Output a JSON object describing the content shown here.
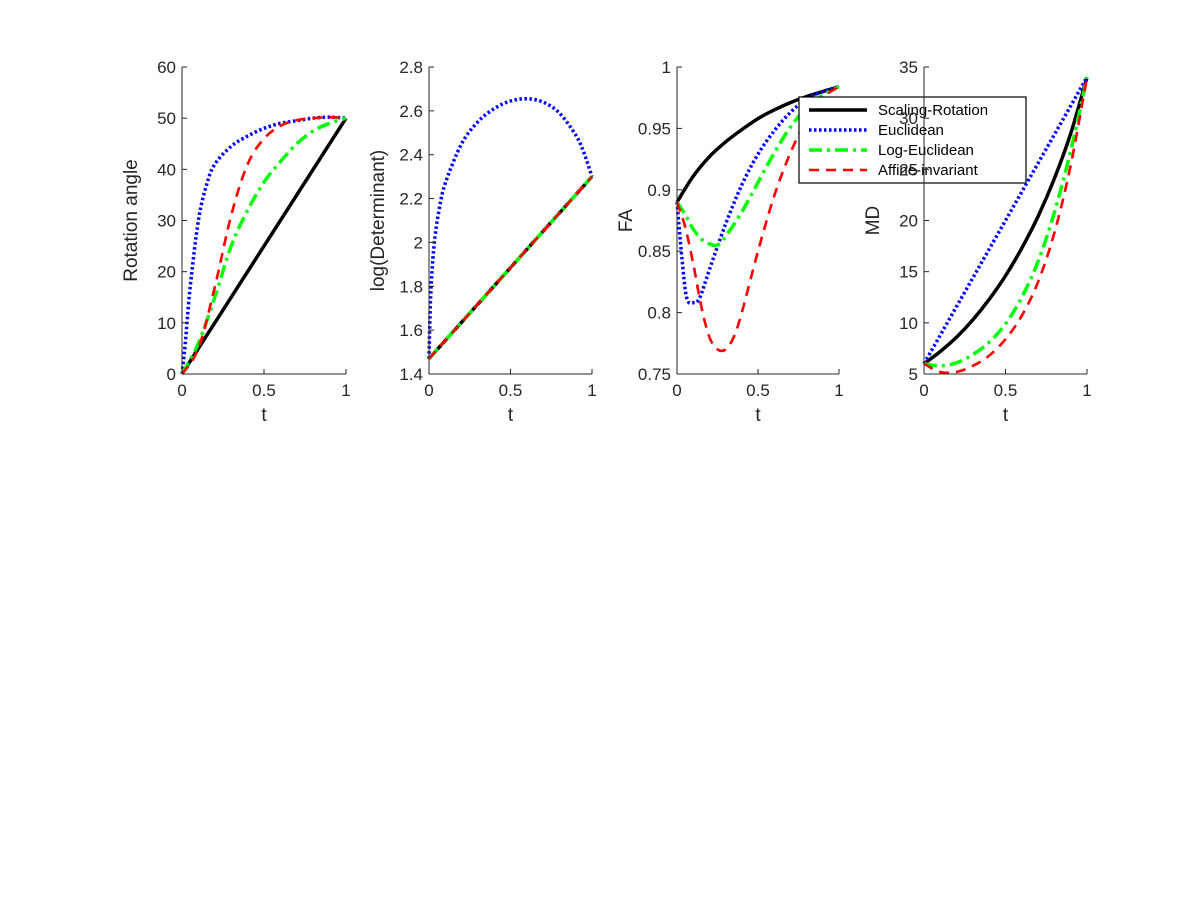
{
  "chart_data": [
    {
      "type": "line",
      "xlabel": "t",
      "ylabel": "Rotation angle",
      "xlim": [
        0,
        1
      ],
      "ylim": [
        0,
        60
      ],
      "xticks": [
        0,
        0.5,
        1
      ],
      "xtick_labels": [
        "0",
        "0.5",
        "1"
      ],
      "yticks": [
        0,
        10,
        20,
        30,
        40,
        50,
        60
      ],
      "ytick_labels": [
        "0",
        "10",
        "20",
        "30",
        "40",
        "50",
        "60"
      ],
      "series": [
        {
          "name": "Scaling-Rotation",
          "x": [
            0,
            0.25,
            0.5,
            0.75,
            1
          ],
          "y": [
            0,
            12.5,
            25,
            37.5,
            50
          ]
        },
        {
          "name": "Euclidean",
          "x": [
            0,
            0.02,
            0.05,
            0.1,
            0.15,
            0.2,
            0.3,
            0.4,
            0.5,
            0.6,
            0.7,
            0.8,
            0.9,
            1
          ],
          "y": [
            0,
            6,
            17,
            30,
            37,
            41,
            44.5,
            46.5,
            48,
            49,
            49.5,
            50,
            50.2,
            50
          ]
        },
        {
          "name": "Log-Euclidean",
          "x": [
            0,
            0.1,
            0.2,
            0.3,
            0.4,
            0.5,
            0.6,
            0.7,
            0.8,
            0.9,
            1
          ],
          "y": [
            0,
            6,
            15,
            25,
            32,
            37.5,
            41.5,
            45,
            47.5,
            49,
            50
          ]
        },
        {
          "name": "Affine-invariant",
          "x": [
            0,
            0.1,
            0.2,
            0.3,
            0.4,
            0.5,
            0.6,
            0.7,
            0.8,
            0.9,
            1
          ],
          "y": [
            0,
            5,
            17,
            31,
            41,
            46,
            48.5,
            49.6,
            50,
            50.2,
            50
          ]
        }
      ]
    },
    {
      "type": "line",
      "xlabel": "t",
      "ylabel": "log(Determinant)",
      "xlim": [
        0,
        1
      ],
      "ylim": [
        1.4,
        2.8
      ],
      "xticks": [
        0,
        0.5,
        1
      ],
      "xtick_labels": [
        "0",
        "0.5",
        "1"
      ],
      "yticks": [
        1.4,
        1.6,
        1.8,
        2.0,
        2.2,
        2.4,
        2.6,
        2.8
      ],
      "ytick_labels": [
        "1.4",
        "1.6",
        "1.8",
        "2",
        "2.2",
        "2.4",
        "2.6",
        "2.8"
      ],
      "series": [
        {
          "name": "Scaling-Rotation",
          "x": [
            0,
            1
          ],
          "y": [
            1.47,
            2.3
          ]
        },
        {
          "name": "Euclidean",
          "x": [
            0,
            0.01,
            0.03,
            0.06,
            0.1,
            0.2,
            0.3,
            0.4,
            0.5,
            0.6,
            0.7,
            0.8,
            0.9,
            0.95,
            1
          ],
          "y": [
            1.47,
            1.75,
            1.98,
            2.14,
            2.27,
            2.45,
            2.55,
            2.61,
            2.645,
            2.655,
            2.64,
            2.59,
            2.49,
            2.41,
            2.3
          ]
        },
        {
          "name": "Log-Euclidean",
          "x": [
            0,
            1
          ],
          "y": [
            1.47,
            2.3
          ]
        },
        {
          "name": "Affine-invariant",
          "x": [
            0,
            1
          ],
          "y": [
            1.47,
            2.3
          ]
        }
      ]
    },
    {
      "type": "line",
      "xlabel": "t",
      "ylabel": "FA",
      "xlim": [
        0,
        1
      ],
      "ylim": [
        0.75,
        1
      ],
      "xticks": [
        0,
        0.5,
        1
      ],
      "xtick_labels": [
        "0",
        "0.5",
        "1"
      ],
      "yticks": [
        0.75,
        0.8,
        0.85,
        0.9,
        0.95,
        1
      ],
      "ytick_labels": [
        "0.75",
        "0.8",
        "0.85",
        "0.9",
        "0.95",
        "1"
      ],
      "series": [
        {
          "name": "Scaling-Rotation",
          "x": [
            0,
            0.1,
            0.2,
            0.3,
            0.4,
            0.5,
            0.6,
            0.7,
            0.8,
            0.9,
            1
          ],
          "y": [
            0.89,
            0.911,
            0.927,
            0.939,
            0.949,
            0.958,
            0.965,
            0.971,
            0.976,
            0.98,
            0.984
          ]
        },
        {
          "name": "Euclidean",
          "x": [
            0,
            0.03,
            0.06,
            0.1,
            0.14,
            0.2,
            0.3,
            0.4,
            0.5,
            0.6,
            0.7,
            0.8,
            0.9,
            1
          ],
          "y": [
            0.89,
            0.845,
            0.812,
            0.808,
            0.812,
            0.835,
            0.872,
            0.904,
            0.929,
            0.948,
            0.963,
            0.974,
            0.98,
            0.984
          ]
        },
        {
          "name": "Log-Euclidean",
          "x": [
            0,
            0.05,
            0.1,
            0.15,
            0.2,
            0.25,
            0.3,
            0.4,
            0.5,
            0.6,
            0.7,
            0.8,
            0.9,
            1
          ],
          "y": [
            0.89,
            0.88,
            0.868,
            0.86,
            0.856,
            0.855,
            0.862,
            0.882,
            0.906,
            0.93,
            0.951,
            0.967,
            0.977,
            0.984
          ]
        },
        {
          "name": "Affine-invariant",
          "x": [
            0,
            0.05,
            0.1,
            0.15,
            0.2,
            0.25,
            0.3,
            0.35,
            0.4,
            0.5,
            0.6,
            0.7,
            0.8,
            0.9,
            1
          ],
          "y": [
            0.89,
            0.87,
            0.84,
            0.805,
            0.78,
            0.77,
            0.77,
            0.78,
            0.8,
            0.85,
            0.895,
            0.93,
            0.957,
            0.975,
            0.984
          ]
        }
      ],
      "legend": {
        "placement": "top-right"
      }
    },
    {
      "type": "line",
      "xlabel": "t",
      "ylabel": "MD",
      "xlim": [
        0,
        1
      ],
      "ylim": [
        5,
        35
      ],
      "xticks": [
        0,
        0.5,
        1
      ],
      "xtick_labels": [
        "0",
        "0.5",
        "1"
      ],
      "yticks": [
        5,
        10,
        15,
        20,
        25,
        30,
        35
      ],
      "ytick_labels": [
        "5",
        "10",
        "15",
        "20",
        "25",
        "30",
        "35"
      ],
      "series": [
        {
          "name": "Scaling-Rotation",
          "x": [
            0,
            0.1,
            0.2,
            0.3,
            0.4,
            0.5,
            0.6,
            0.7,
            0.8,
            0.9,
            1
          ],
          "y": [
            6,
            7.2,
            8.6,
            10.3,
            12.3,
            14.6,
            17.3,
            20.4,
            24.1,
            28.5,
            34
          ]
        },
        {
          "name": "Euclidean",
          "x": [
            0,
            1
          ],
          "y": [
            6,
            34
          ]
        },
        {
          "name": "Log-Euclidean",
          "x": [
            0,
            0.1,
            0.2,
            0.3,
            0.4,
            0.5,
            0.6,
            0.7,
            0.8,
            0.9,
            1
          ],
          "y": [
            6,
            5.8,
            6.1,
            6.9,
            8.1,
            9.9,
            12.5,
            16,
            20.8,
            26.8,
            34
          ]
        },
        {
          "name": "Affine-invariant",
          "x": [
            0,
            0.1,
            0.2,
            0.3,
            0.4,
            0.5,
            0.6,
            0.7,
            0.8,
            0.9,
            1
          ],
          "y": [
            6,
            5.2,
            5.2,
            5.8,
            6.8,
            8.4,
            10.7,
            14,
            18.8,
            25.4,
            34
          ]
        }
      ]
    }
  ],
  "legend_entries": [
    "Scaling-Rotation",
    "Euclidean",
    "Log-Euclidean",
    "Affine-invariant"
  ],
  "colors": {
    "Scaling-Rotation": "#000000",
    "Euclidean": "#0000ff",
    "Log-Euclidean": "#00ff00",
    "Affine-invariant": "#ff0000",
    "axis": "#262626"
  }
}
